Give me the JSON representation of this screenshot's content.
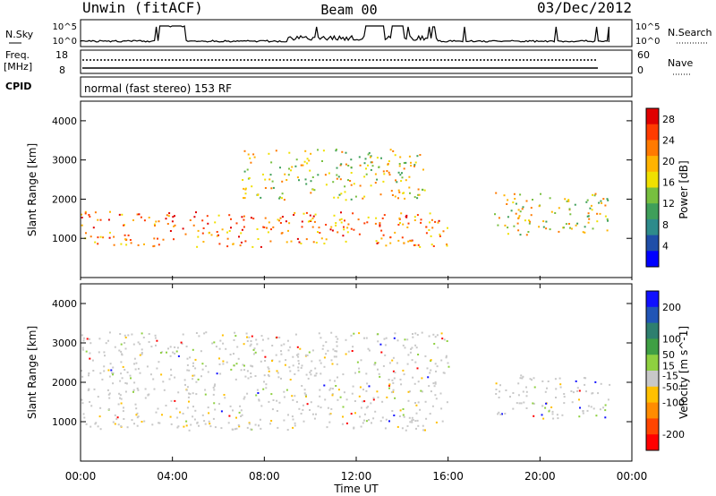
{
  "header": {
    "station": "Unwin (fitACF)",
    "beam": "Beam 00",
    "date": "03/Dec/2012"
  },
  "panels": {
    "nsky": {
      "label": "N.Sky",
      "tick_top": "10^5",
      "tick_bottom": "10^0",
      "right_label": "N.Search",
      "right_tick_top": "10^5",
      "right_tick_bottom": "10^0"
    },
    "freq": {
      "label_line1": "Freq.",
      "label_line2": "[MHz]",
      "ticks_left": [
        "18",
        "8"
      ],
      "right_label": "Nave",
      "ticks_right": [
        "60",
        "0"
      ]
    },
    "cpid": {
      "label": "CPID",
      "text": "normal (fast stereo) 153 RF"
    }
  },
  "colors": {
    "power_scale": [
      "#0000ff",
      "#1f4ea8",
      "#2e8b8b",
      "#3f9f5a",
      "#77bf3f",
      "#f0e000",
      "#ffb300",
      "#ff7a00",
      "#ff3b00",
      "#e00000"
    ],
    "velocity_scale": [
      "#1010ff",
      "#2155b6",
      "#2e7f6f",
      "#3f9f44",
      "#8ed040",
      "#c8c8c8",
      "#ffc000",
      "#ff8c00",
      "#ff4500",
      "#ff0000"
    ]
  },
  "chart_data": [
    {
      "type": "heatmap",
      "panel": "power",
      "ylabel": "Slant Range [km]",
      "xlim": [
        "00:00",
        "24:00"
      ],
      "ylim": [
        0,
        4500
      ],
      "yticks": [
        "1000",
        "2000",
        "3000",
        "4000"
      ],
      "colorbar": {
        "label": "Power [dB]",
        "ticks": [
          "4",
          "8",
          "12",
          "16",
          "20",
          "24",
          "28"
        ],
        "range": [
          0,
          30
        ]
      },
      "regions": [
        {
          "time": [
            "00:00",
            "16:00"
          ],
          "range_km": [
            800,
            1700
          ],
          "level_dB": 22
        },
        {
          "time": [
            "07:00",
            "15:00"
          ],
          "range_km": [
            2000,
            3300
          ],
          "level_dB": 16
        },
        {
          "time": [
            "18:00",
            "23:00"
          ],
          "range_km": [
            1100,
            2200
          ],
          "level_dB": 14
        }
      ]
    },
    {
      "type": "heatmap",
      "panel": "velocity",
      "ylabel": "Slant Range [km]",
      "xlim": [
        "00:00",
        "24:00"
      ],
      "ylim": [
        0,
        4500
      ],
      "yticks": [
        "1000",
        "2000",
        "3000",
        "4000"
      ],
      "colorbar": {
        "label": "Velocity [m s^-1]",
        "ticks": [
          "200",
          "100",
          "50",
          "15",
          "-15",
          "-50",
          "-100",
          "-200"
        ],
        "range": [
          -250,
          250
        ]
      },
      "regions": [
        {
          "time": [
            "00:00",
            "16:00"
          ],
          "range_km": [
            800,
            3300
          ],
          "level_ms": 0
        },
        {
          "time": [
            "18:00",
            "23:00"
          ],
          "range_km": [
            1100,
            2200
          ],
          "level_ms": 0
        }
      ]
    }
  ],
  "xaxis": {
    "label": "Time UT",
    "ticks": [
      "00:00",
      "04:00",
      "08:00",
      "12:00",
      "16:00",
      "20:00",
      "00:00"
    ]
  }
}
